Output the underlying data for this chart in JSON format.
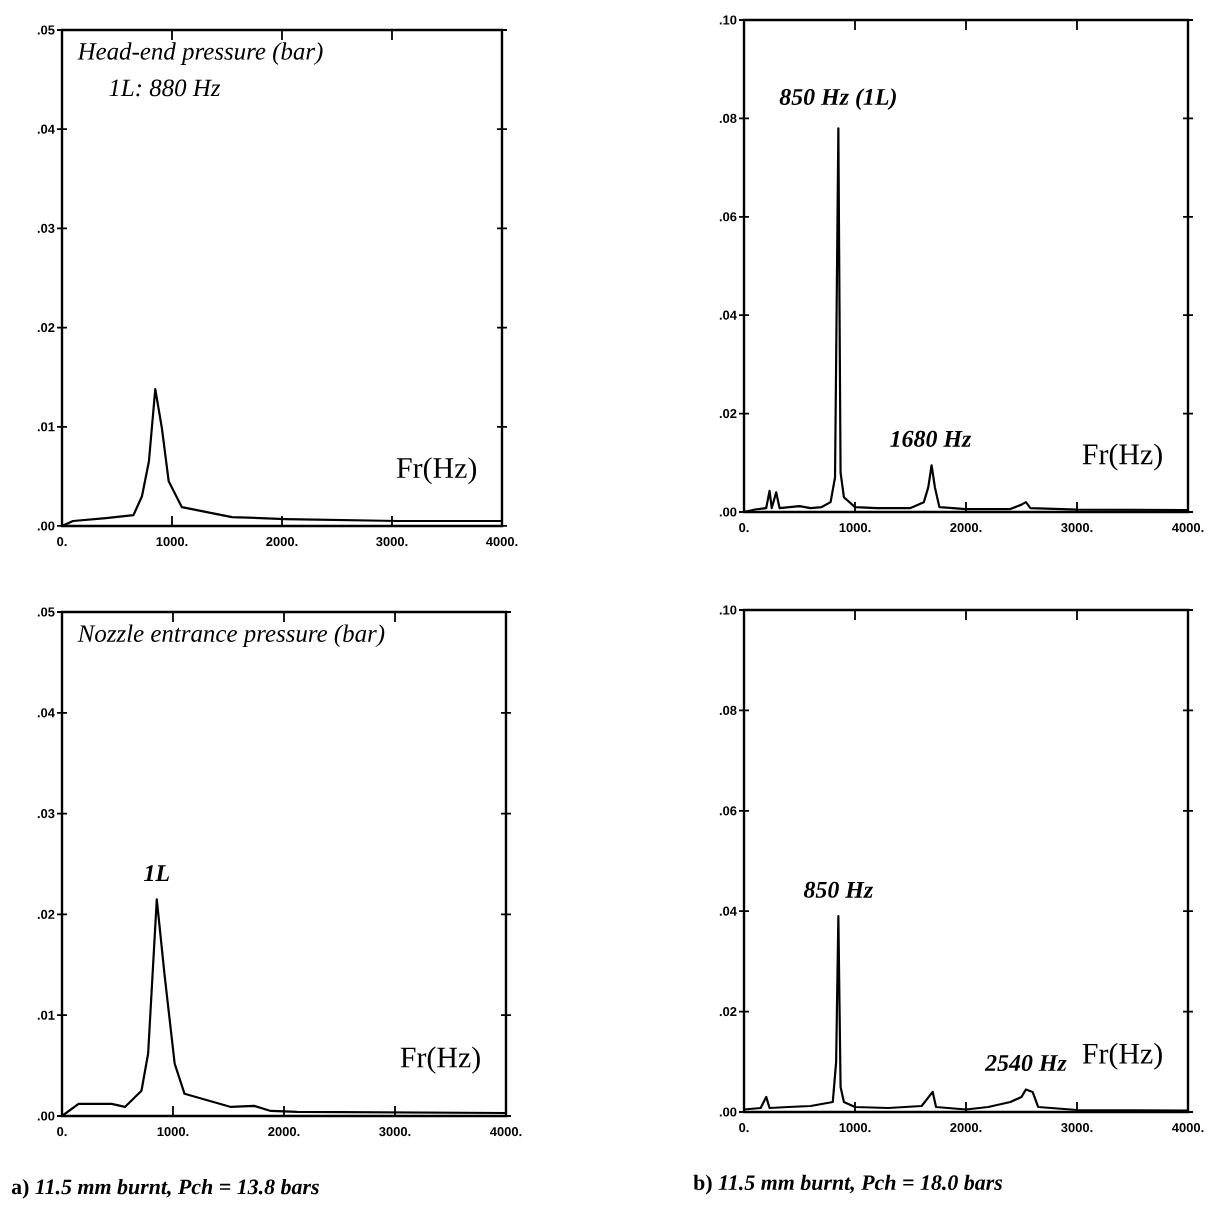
{
  "chart_data": [
    {
      "type": "line",
      "title": "Head-end pressure (bar)",
      "subtitle": "1L: 880 Hz",
      "xlabel": "Fr(Hz)",
      "color": "#000000",
      "xlim": [
        0,
        4000
      ],
      "ylim": [
        0,
        0.05
      ],
      "xticks": [
        {
          "value": 0,
          "label": "0."
        },
        {
          "value": 1000,
          "label": "1000."
        },
        {
          "value": 2000,
          "label": "2000."
        },
        {
          "value": 3000,
          "label": "3000."
        },
        {
          "value": 4000,
          "label": "4000."
        }
      ],
      "yticks": [
        {
          "value": 0,
          "label": ".00"
        },
        {
          "value": 0.01,
          "label": ".01"
        },
        {
          "value": 0.02,
          "label": ".02"
        },
        {
          "value": 0.03,
          "label": ".03"
        },
        {
          "value": 0.04,
          "label": ".04"
        },
        {
          "value": 0.05,
          "label": ".05"
        }
      ],
      "x": [
        0,
        100,
        400,
        650,
        727,
        790,
        848,
        909,
        970,
        1090,
        1545,
        2030,
        3060,
        4000
      ],
      "values": [
        0,
        0.0005,
        0.0008,
        0.0011,
        0.003,
        0.0065,
        0.0138,
        0.0098,
        0.0045,
        0.0019,
        0.0009,
        0.0007,
        0.0005,
        0.0005
      ]
    },
    {
      "type": "line",
      "xlabel": "Fr(Hz)",
      "color": "#000000",
      "xlim": [
        0,
        4000
      ],
      "ylim": [
        0,
        0.1
      ],
      "xticks": [
        {
          "value": 0,
          "label": "0."
        },
        {
          "value": 1000,
          "label": "1000."
        },
        {
          "value": 2000,
          "label": "2000."
        },
        {
          "value": 3000,
          "label": "3000."
        },
        {
          "value": 4000,
          "label": "4000."
        }
      ],
      "yticks": [
        {
          "value": 0,
          "label": ".00"
        },
        {
          "value": 0.02,
          "label": ".02"
        },
        {
          "value": 0.04,
          "label": ".04"
        },
        {
          "value": 0.06,
          "label": ".06"
        },
        {
          "value": 0.08,
          "label": ".08"
        },
        {
          "value": 0.1,
          "label": ".10"
        }
      ],
      "x": [
        0,
        100,
        200,
        230,
        250,
        290,
        320,
        500,
        600,
        700,
        780,
        820,
        850,
        870,
        900,
        1000,
        1200,
        1500,
        1620,
        1660,
        1690,
        1720,
        1760,
        2000,
        2400,
        2500,
        2540,
        2580,
        3000,
        4000
      ],
      "values": [
        0,
        0.0005,
        0.0008,
        0.0043,
        0.0008,
        0.004,
        0.0008,
        0.0012,
        0.0008,
        0.001,
        0.002,
        0.007,
        0.078,
        0.008,
        0.003,
        0.001,
        0.0008,
        0.0008,
        0.002,
        0.005,
        0.0095,
        0.005,
        0.001,
        0.0006,
        0.0006,
        0.0015,
        0.002,
        0.0008,
        0.0005,
        0.0004
      ],
      "annotations": [
        {
          "text": "850 Hz (1L)",
          "x": 850,
          "y": 0.078
        },
        {
          "text": "1680 Hz",
          "x": 1680,
          "y": 0.0095
        }
      ]
    },
    {
      "type": "line",
      "title": "Nozzle entrance pressure (bar)",
      "xlabel": "Fr(Hz)",
      "color": "#000000",
      "xlim": [
        0,
        4000
      ],
      "ylim": [
        0,
        0.05
      ],
      "xticks": [
        {
          "value": 0,
          "label": "0."
        },
        {
          "value": 1000,
          "label": "1000."
        },
        {
          "value": 2000,
          "label": "2000."
        },
        {
          "value": 3000,
          "label": "3000."
        },
        {
          "value": 4000,
          "label": "4000."
        }
      ],
      "yticks": [
        {
          "value": 0,
          "label": ".00"
        },
        {
          "value": 0.01,
          "label": ".01"
        },
        {
          "value": 0.02,
          "label": ".02"
        },
        {
          "value": 0.03,
          "label": ".03"
        },
        {
          "value": 0.04,
          "label": ".04"
        },
        {
          "value": 0.05,
          "label": ".05"
        }
      ],
      "x": [
        0,
        149,
        448,
        567,
        716,
        776,
        854,
        925,
        1015,
        1104,
        1522,
        1731,
        1881,
        2119,
        4000
      ],
      "values": [
        0,
        0.0012,
        0.0012,
        0.0009,
        0.0025,
        0.0062,
        0.0215,
        0.0139,
        0.0052,
        0.0022,
        0.0009,
        0.001,
        0.0005,
        0.0004,
        0.0003
      ],
      "annotations": [
        {
          "text": "1L",
          "x": 854,
          "y": 0.0215
        },
        "a) *11.5 mm burnt, Pch = 13.8 bars*"
      ]
    },
    {
      "type": "line",
      "xlabel": "Fr(Hz)",
      "color": "#000000",
      "xlim": [
        0,
        4000
      ],
      "ylim": [
        0,
        0.1
      ],
      "xticks": [
        {
          "value": 0,
          "label": "0."
        },
        {
          "value": 1000,
          "label": "1000."
        },
        {
          "value": 2000,
          "label": "2000."
        },
        {
          "value": 3000,
          "label": "3000."
        },
        {
          "value": 4000,
          "label": "4000."
        }
      ],
      "yticks": [
        {
          "value": 0,
          "label": ".00"
        },
        {
          "value": 0.02,
          "label": ".02"
        },
        {
          "value": 0.04,
          "label": ".04"
        },
        {
          "value": 0.06,
          "label": ".06"
        },
        {
          "value": 0.08,
          "label": ".08"
        },
        {
          "value": 0.1,
          "label": ".10"
        }
      ],
      "x": [
        0,
        150,
        200,
        230,
        400,
        600,
        800,
        830,
        850,
        870,
        900,
        1000,
        1300,
        1600,
        1700,
        1730,
        2000,
        2200,
        2400,
        2500,
        2540,
        2600,
        2650,
        3000,
        4000
      ],
      "values": [
        0.0005,
        0.0008,
        0.003,
        0.0008,
        0.001,
        0.0012,
        0.002,
        0.01,
        0.039,
        0.005,
        0.002,
        0.001,
        0.0008,
        0.0012,
        0.004,
        0.001,
        0.0005,
        0.001,
        0.002,
        0.003,
        0.0045,
        0.004,
        0.001,
        0.0004,
        0.0003
      ],
      "annotations": [
        {
          "text": "850 Hz",
          "x": 850,
          "y": 0.039
        },
        {
          "text": "2540 Hz",
          "x": 2540,
          "y": 0.0045
        },
        "b) *11.5 mm burnt, Pch = 18.0 bars*"
      ]
    }
  ]
}
